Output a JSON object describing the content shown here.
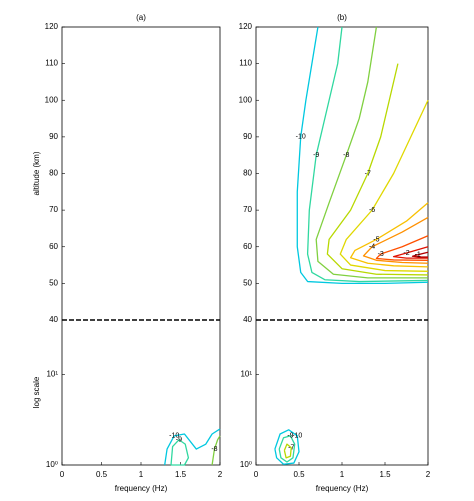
{
  "chart_data": [
    {
      "type": "contour",
      "title": "(a)",
      "xlabel": "frequency (Hz)",
      "ylabel": "altitude (km)",
      "ylabel_log": "log scale",
      "xlim": [
        0,
        2
      ],
      "xticks": [
        0,
        0.5,
        1,
        1.5,
        2
      ],
      "ylim": [
        40,
        120
      ],
      "yticks": [
        40,
        50,
        60,
        70,
        80,
        90,
        100,
        110,
        120
      ],
      "ylim_log": [
        1,
        40
      ],
      "yticks_log": [
        {
          "value": 1,
          "label": "10⁰"
        },
        {
          "value": 10,
          "label": "10¹"
        }
      ],
      "contours": [
        {
          "level": -10,
          "color": "#00c8e0",
          "x": [
            1.3,
            1.33,
            1.42,
            1.55,
            1.7,
            1.82,
            1.9,
            2.0
          ],
          "y": [
            1.0,
            1.5,
            2.1,
            2.2,
            1.5,
            1.7,
            2.2,
            2.5
          ]
        },
        {
          "level": -9,
          "color": "#30d8a0",
          "x": [
            1.38,
            1.4,
            1.48,
            1.56,
            1.6,
            1.55,
            1.45,
            1.38
          ],
          "y": [
            1.0,
            1.6,
            1.9,
            1.7,
            1.2,
            1.0,
            1.0,
            1.0
          ]
        },
        {
          "level": -8,
          "color": "#80d040",
          "x": [
            1.9,
            1.93,
            1.97,
            2.0
          ],
          "y": [
            1.0,
            1.5,
            1.9,
            2.1
          ]
        }
      ]
    },
    {
      "type": "contour",
      "title": "(b)",
      "xlabel": "frequency (Hz)",
      "xlim": [
        0,
        2
      ],
      "xticks": [
        0,
        0.5,
        1,
        1.5,
        2
      ],
      "ylim": [
        40,
        120
      ],
      "yticks": [
        40,
        50,
        60,
        70,
        80,
        90,
        100,
        110,
        120
      ],
      "ylim_log": [
        1,
        40
      ],
      "yticks_log": [
        {
          "value": 1,
          "label": "10⁰"
        },
        {
          "value": 10,
          "label": "10¹"
        }
      ],
      "contours": [
        {
          "level": -10,
          "color": "#00c8e0",
          "x": [
            0.72,
            0.65,
            0.58,
            0.52,
            0.48,
            0.48,
            0.52,
            0.6,
            1.0,
            1.5,
            2.0
          ],
          "y": [
            120,
            110,
            100,
            90,
            75,
            60,
            53,
            50.5,
            50,
            50,
            50.3
          ]
        },
        {
          "level": -9,
          "color": "#30d8a0",
          "x": [
            1.0,
            0.95,
            0.85,
            0.7,
            0.62,
            0.6,
            0.65,
            0.8,
            1.2,
            2.0
          ],
          "y": [
            120,
            110,
            100,
            85,
            70,
            58,
            53,
            51,
            50.5,
            50.8
          ]
        },
        {
          "level": -8,
          "color": "#80d040",
          "x": [
            1.4,
            1.3,
            1.2,
            1.05,
            0.85,
            0.7,
            0.72,
            0.9,
            1.3,
            2.0
          ],
          "y": [
            120,
            105,
            95,
            85,
            72,
            62,
            56,
            52.5,
            51.5,
            51.5
          ]
        },
        {
          "level": -7,
          "color": "#b8d800",
          "x": [
            1.65,
            1.55,
            1.45,
            1.3,
            1.1,
            0.85,
            0.83,
            1.0,
            1.4,
            2.0
          ],
          "y": [
            110,
            100,
            90,
            80,
            70,
            62,
            58,
            54,
            52.5,
            52.3
          ]
        },
        {
          "level": -6,
          "color": "#e0d800",
          "x": [
            2.0,
            1.8,
            1.6,
            1.35,
            1.05,
            0.98,
            1.1,
            1.5,
            2.0
          ],
          "y": [
            100,
            90,
            80,
            70,
            62,
            58,
            55,
            53.5,
            53.3
          ]
        },
        {
          "level": -5,
          "color": "#f8c000",
          "x": [
            2.0,
            1.75,
            1.4,
            1.15,
            1.1,
            1.3,
            1.6,
            2.0
          ],
          "y": [
            72,
            67,
            62,
            59,
            57,
            55.5,
            54.8,
            54.5
          ]
        },
        {
          "level": -4,
          "color": "#ff9000",
          "x": [
            2.0,
            1.7,
            1.35,
            1.25,
            1.4,
            1.7,
            2.0
          ],
          "y": [
            68,
            64,
            60,
            57.5,
            56.3,
            55.7,
            55.5
          ]
        },
        {
          "level": -3,
          "color": "#ff5000",
          "x": [
            2.0,
            1.7,
            1.45,
            1.4,
            1.6,
            2.0
          ],
          "y": [
            63,
            60,
            58,
            56.8,
            56.4,
            56.3
          ]
        },
        {
          "level": -2,
          "color": "#e01000",
          "x": [
            2.0,
            1.75,
            1.6,
            1.75,
            2.0
          ],
          "y": [
            60,
            58.3,
            57.3,
            56.9,
            56.9
          ]
        },
        {
          "level": -1,
          "color": "#b00000",
          "x": [
            2.0,
            1.88,
            1.82,
            1.9,
            2.0
          ],
          "y": [
            58.5,
            57.8,
            57.4,
            57.2,
            57.2
          ]
        },
        {
          "level": -10,
          "color": "#00c8e0",
          "x": [
            0.22,
            0.28,
            0.38,
            0.48,
            0.5,
            0.44,
            0.32,
            0.24,
            0.22
          ],
          "y": [
            1.5,
            2.2,
            2.45,
            2.1,
            1.4,
            1.05,
            1.02,
            1.2,
            1.5
          ]
        },
        {
          "level": -9,
          "color": "#30d8a0",
          "x": [
            0.27,
            0.32,
            0.4,
            0.45,
            0.43,
            0.36,
            0.29,
            0.27
          ],
          "y": [
            1.5,
            2.0,
            2.1,
            1.7,
            1.2,
            1.08,
            1.2,
            1.5
          ]
        },
        {
          "level": -7,
          "color": "#b8d800",
          "x": [
            0.33,
            0.36,
            0.41,
            0.4,
            0.35,
            0.33
          ],
          "y": [
            1.45,
            1.7,
            1.55,
            1.25,
            1.2,
            1.45
          ]
        }
      ]
    }
  ]
}
